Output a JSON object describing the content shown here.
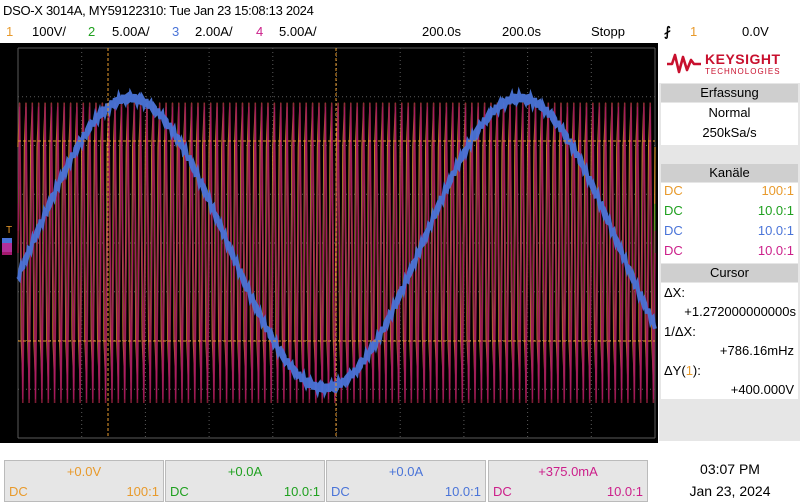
{
  "header": {
    "title": "DSO-X 3014A, MY59122310: Tue Jan 23 15:08:13 2024"
  },
  "channel_bar": {
    "ch1": {
      "num": "1",
      "scale": "100V/",
      "color": "#e89a2c"
    },
    "ch2": {
      "num": "2",
      "scale": "5.00A/",
      "color": "#1fa01f"
    },
    "ch3": {
      "num": "3",
      "scale": "2.00A/",
      "color": "#4a74d8"
    },
    "ch4": {
      "num": "4",
      "scale": "5.00A/",
      "color": "#cc1f8a"
    },
    "time_scale": "200.0s",
    "delay": "200.0s",
    "status": "Stopp",
    "trigger_icon": "trigger-edge-icon",
    "trigger_source": "1",
    "trigger_level": "0.0V"
  },
  "sidebar": {
    "brand": "KEYSIGHT",
    "brand_sub": "TECHNOLOGIES",
    "acquisition": {
      "title": "Erfassung",
      "mode": "Normal",
      "rate": "250kSa/s"
    },
    "channels": {
      "title": "Kanäle",
      "rows": [
        {
          "coupling": "DC",
          "probe": "100:1",
          "color": "#e89a2c"
        },
        {
          "coupling": "DC",
          "probe": "10.0:1",
          "color": "#1fa01f"
        },
        {
          "coupling": "DC",
          "probe": "10.0:1",
          "color": "#4a74d8"
        },
        {
          "coupling": "DC",
          "probe": "10.0:1",
          "color": "#cc1f8a"
        }
      ]
    },
    "cursor": {
      "title": "Cursor",
      "dx_label": "ΔX:",
      "dx_value": "+1.272000000000s",
      "inv_dx_label": "1/ΔX:",
      "inv_dx_value": "+786.16mHz",
      "dy_label_pre": "ΔY(",
      "dy_channel": "1",
      "dy_label_post": "):",
      "dy_value": "+400.000V"
    }
  },
  "bottom": {
    "panels": [
      {
        "offset": "+0.0V",
        "coupling": "DC",
        "probe": "100:1",
        "color": "#e89a2c"
      },
      {
        "offset": "+0.0A",
        "coupling": "DC",
        "probe": "10.0:1",
        "color": "#1fa01f"
      },
      {
        "offset": "+0.0A",
        "coupling": "DC",
        "probe": "10.0:1",
        "color": "#4a74d8"
      },
      {
        "offset": "+375.0mA",
        "coupling": "DC",
        "probe": "10.0:1",
        "color": "#cc1f8a"
      }
    ],
    "time": "03:07 PM",
    "date": "Jan 23, 2024"
  },
  "colors": {
    "grid": "#5a5a5a",
    "cursor_line": "#e89a2c",
    "screen_bg": "#000000"
  }
}
